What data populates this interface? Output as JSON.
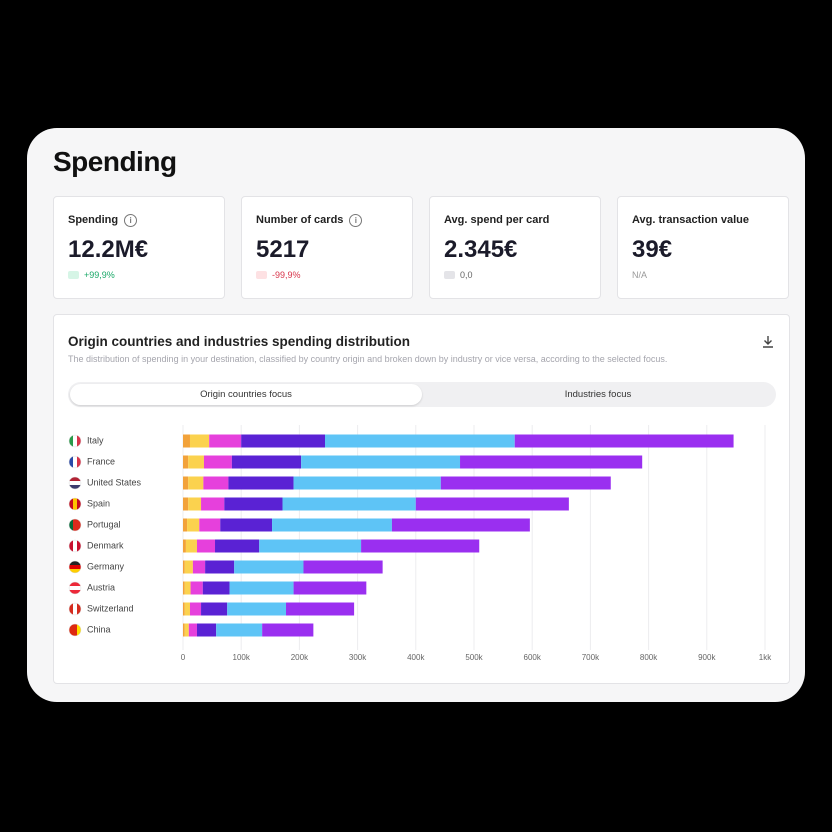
{
  "header": {
    "title": "Spending"
  },
  "kpis": [
    {
      "label": "Spending",
      "value": "12.2M€",
      "delta": "+99,9%",
      "trend": "up"
    },
    {
      "label": "Number of cards",
      "value": "5217",
      "delta": "-99,9%",
      "trend": "down"
    },
    {
      "label": "Avg. spend per card",
      "value": "2.345€",
      "delta": "0,0",
      "trend": "flat"
    },
    {
      "label": "Avg. transaction value",
      "value": "39€",
      "delta": "N/A",
      "trend": "none"
    }
  ],
  "tabs": [
    "Origin countries focus",
    "Industries focus"
  ],
  "chart_data": {
    "type": "bar",
    "orientation": "horizontal",
    "stacked": true,
    "title": "Origin countries and industries spending distribution",
    "subtitle": "The distribution of spending in your destination, classified by country origin and broken down by industry or vice versa, according to the selected focus.",
    "categories": [
      "Italy",
      "France",
      "United States",
      "Spain",
      "Portugal",
      "Denmark",
      "Germany",
      "Austria",
      "Switzerland",
      "China"
    ],
    "series": [
      {
        "color": "#f2a23a",
        "values": [
          12000,
          9000,
          9000,
          9000,
          7000,
          5000,
          3000,
          3000,
          3000,
          3000
        ]
      },
      {
        "color": "#fbd24e",
        "values": [
          33000,
          27000,
          26000,
          22000,
          21000,
          19000,
          14000,
          10000,
          9000,
          7000
        ]
      },
      {
        "color": "#e640dc",
        "values": [
          55000,
          48000,
          43000,
          40000,
          36000,
          31000,
          21000,
          21000,
          19000,
          14000
        ]
      },
      {
        "color": "#5a22d4",
        "values": [
          144000,
          119000,
          112000,
          100000,
          89000,
          76000,
          50000,
          46000,
          45000,
          33000
        ]
      },
      {
        "color": "#5ec4f6",
        "values": [
          326000,
          273000,
          253000,
          229000,
          206000,
          175000,
          119000,
          110000,
          101000,
          79000
        ]
      },
      {
        "color": "#9a2ff0",
        "values": [
          376000,
          313000,
          292000,
          263000,
          237000,
          203000,
          136000,
          125000,
          117000,
          88000
        ]
      }
    ],
    "xlim": [
      0,
      1000000
    ],
    "xticks": [
      0,
      {
        "value": 100000,
        "label": "100k"
      },
      {
        "value": 200000,
        "label": "200k"
      },
      {
        "value": 300000,
        "label": "300k"
      },
      {
        "value": 400000,
        "label": "400k"
      },
      {
        "value": 500000,
        "label": "500k"
      },
      {
        "value": 600000,
        "label": "600k"
      },
      {
        "value": 700000,
        "label": "700k"
      },
      {
        "value": 800000,
        "label": "800k"
      },
      {
        "value": 900000,
        "label": "900k"
      },
      {
        "value": 1000000,
        "label": "1kk"
      }
    ],
    "grid": true
  }
}
